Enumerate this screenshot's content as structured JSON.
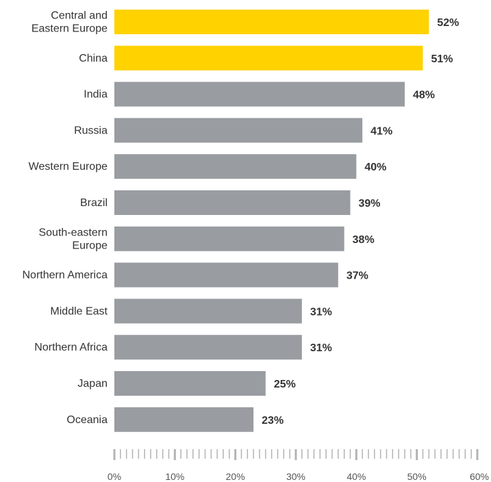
{
  "chart_data": {
    "type": "bar",
    "orientation": "horizontal",
    "title": "",
    "xlabel": "",
    "ylabel": "",
    "categories": [
      [
        "Central and",
        "Eastern Europe"
      ],
      [
        "China"
      ],
      [
        "India"
      ],
      [
        "Russia"
      ],
      [
        "Western Europe"
      ],
      [
        "Brazil"
      ],
      [
        "South-eastern",
        "Europe"
      ],
      [
        "Northern America"
      ],
      [
        "Middle East"
      ],
      [
        "Northern Africa"
      ],
      [
        "Japan"
      ],
      [
        "Oceania"
      ]
    ],
    "values": [
      52,
      51,
      48,
      41,
      40,
      39,
      38,
      37,
      31,
      31,
      25,
      23
    ],
    "value_labels": [
      "52%",
      "51%",
      "48%",
      "41%",
      "40%",
      "39%",
      "38%",
      "37%",
      "31%",
      "31%",
      "25%",
      "23%"
    ],
    "highlighted": [
      true,
      true,
      false,
      false,
      false,
      false,
      false,
      false,
      false,
      false,
      false,
      false
    ],
    "xlim": [
      0,
      60
    ],
    "x_ticks": [
      0,
      10,
      20,
      30,
      40,
      50,
      60
    ],
    "x_tick_labels": [
      "0%",
      "10%",
      "20%",
      "30%",
      "40%",
      "50%",
      "60%"
    ],
    "minor_tick_step": 1,
    "grid": false,
    "legend": "none",
    "colors": {
      "highlight": "#FFD200",
      "default": "#999CA1",
      "axis_ticks": "#B3B3B3"
    }
  }
}
